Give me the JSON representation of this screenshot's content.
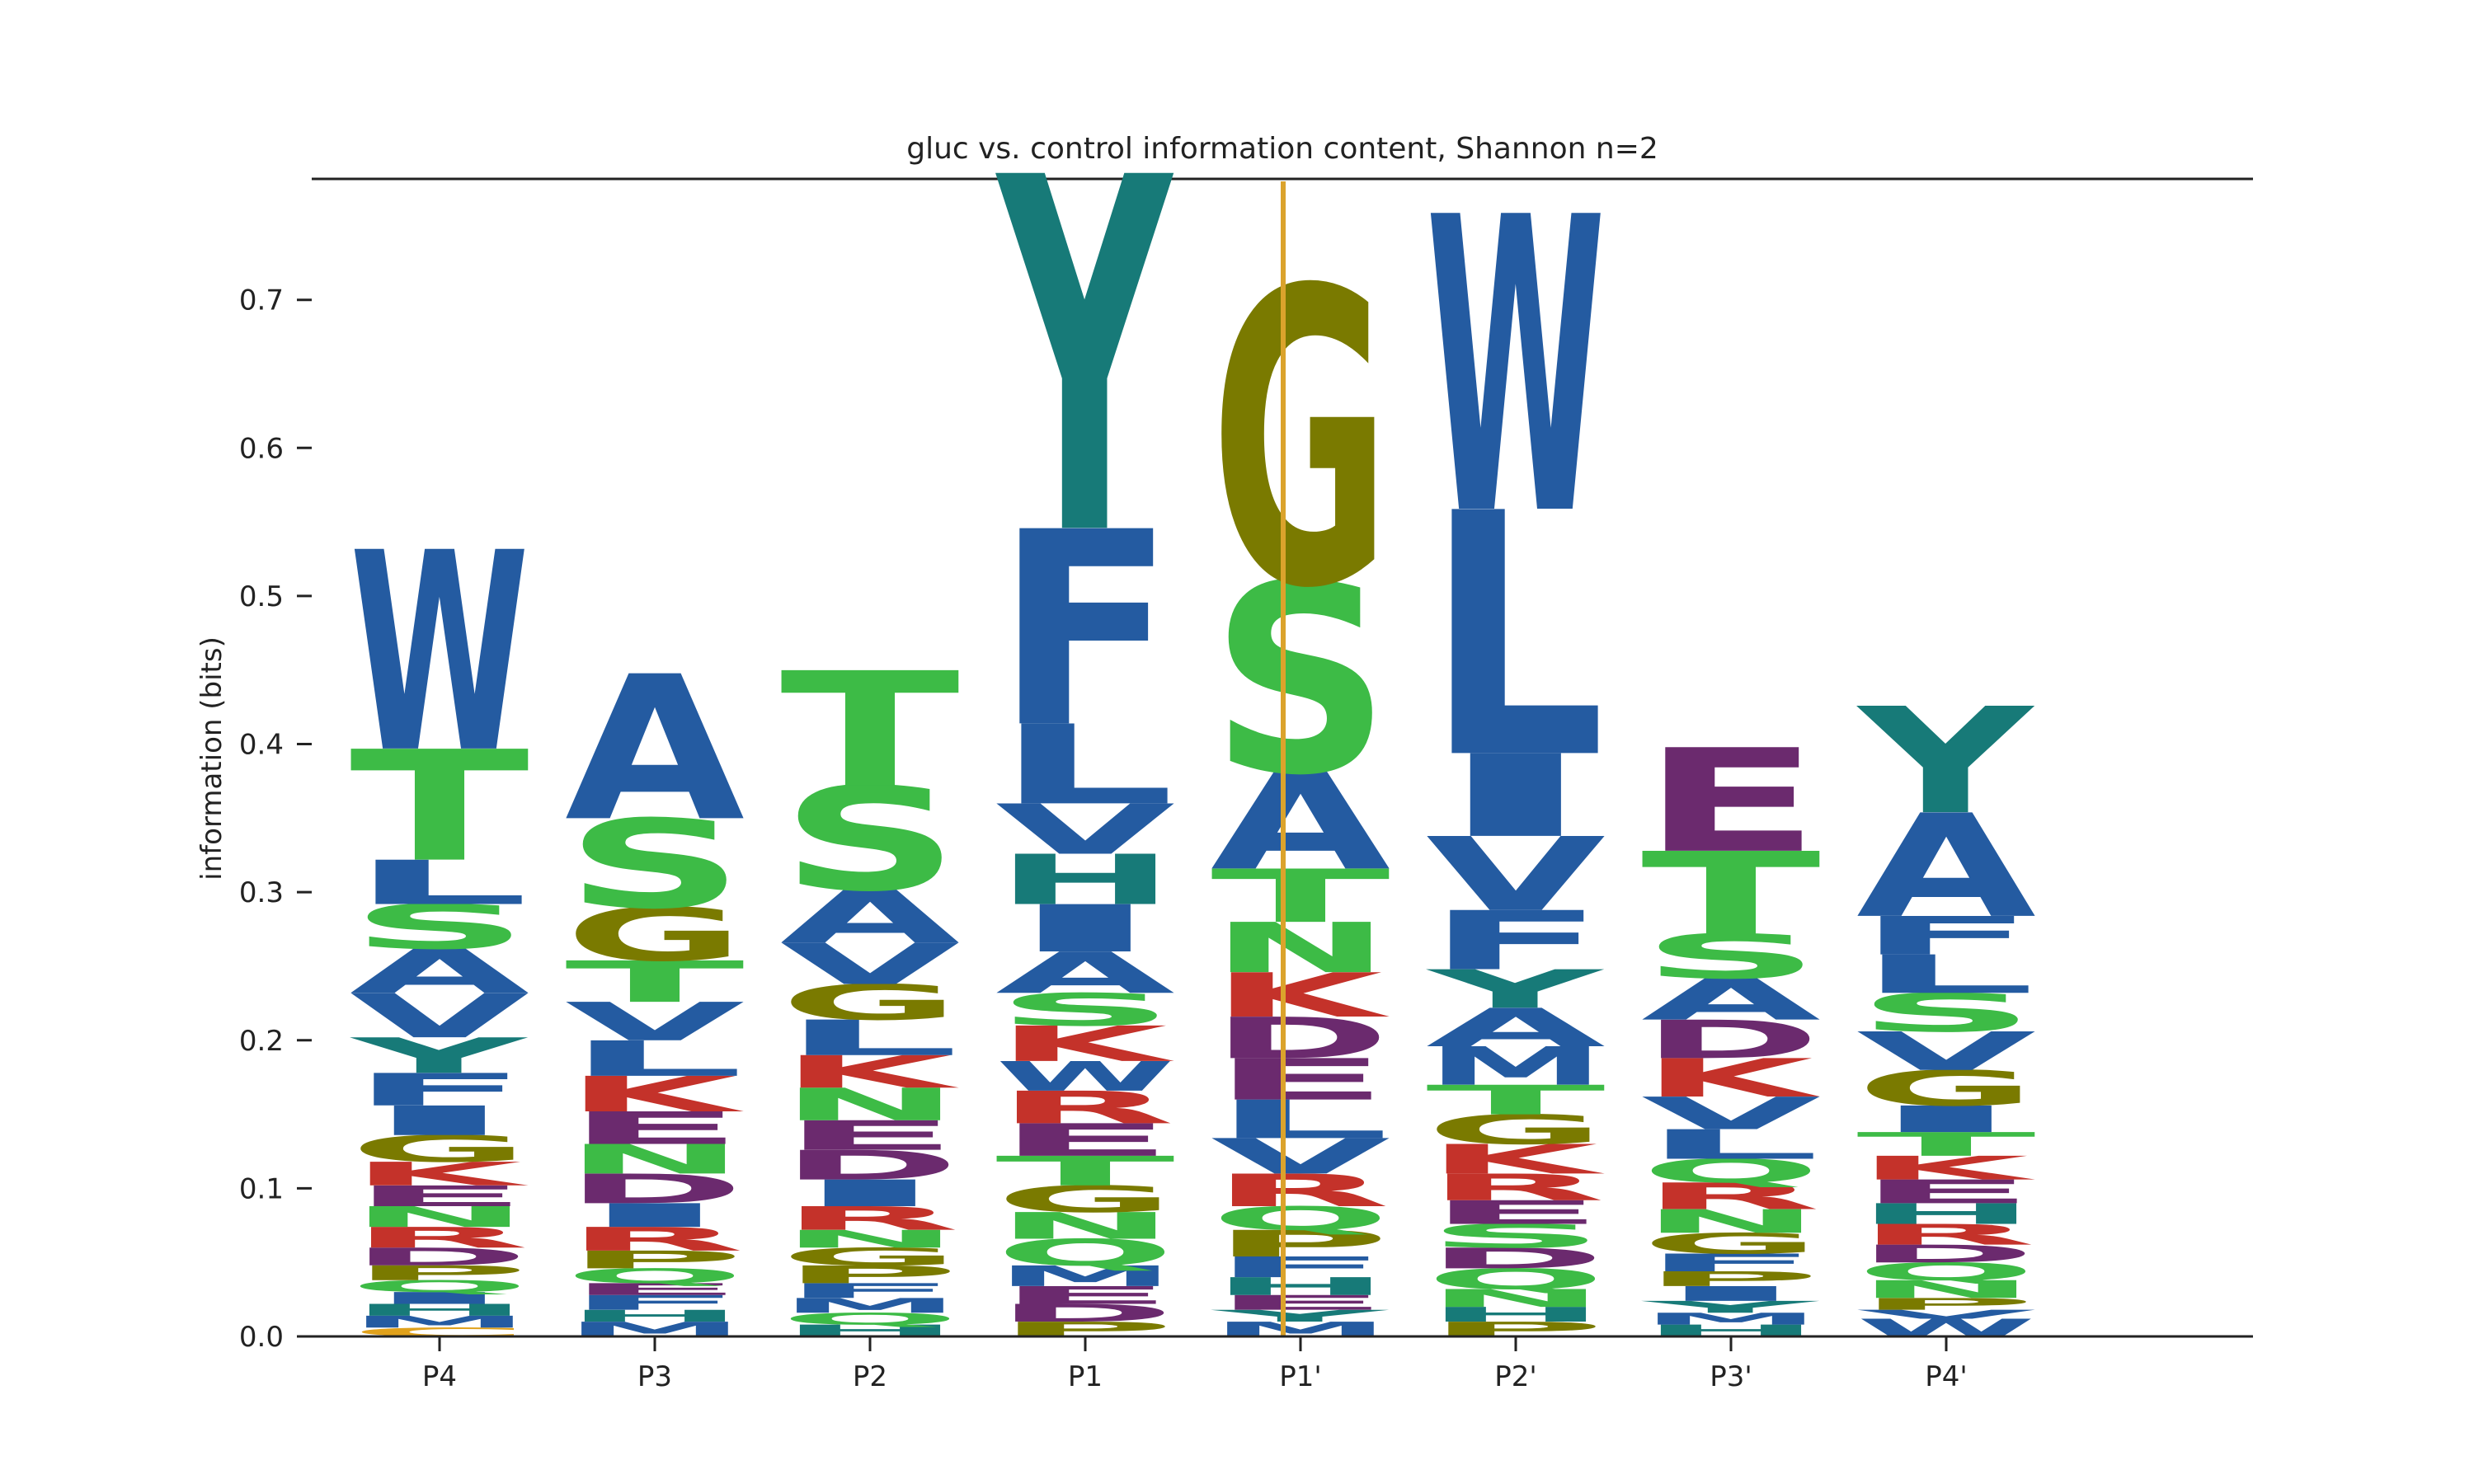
{
  "chart_data": {
    "type": "sequence-logo",
    "title": "gluc vs. control information content, Shannon n=2",
    "ylabel": "information (bits)",
    "ylim": [
      0,
      0.78
    ],
    "yticks": [
      "0.0",
      "0.1",
      "0.2",
      "0.3",
      "0.4",
      "0.5",
      "0.6",
      "0.7"
    ],
    "cleavage_site_after": "P1",
    "colors": {
      "W": "#245ba1",
      "L": "#245ba1",
      "A": "#245ba1",
      "V": "#245ba1",
      "F": "#245ba1",
      "I": "#245ba1",
      "M": "#245ba1",
      "Y": "#177a78",
      "H": "#177a78",
      "T": "#3dbb46",
      "S": "#3dbb46",
      "N": "#3dbb46",
      "Q": "#3dbb46",
      "G": "#7a7a00",
      "P": "#7a7a00",
      "K": "#c4322a",
      "R": "#c4322a",
      "E": "#6b2a6e",
      "D": "#6b2a6e",
      "C": "#e0a11b",
      "cleavage_line": "#dba32c"
    },
    "positions": [
      {
        "label": "P4",
        "letters": [
          {
            "aa": "C",
            "bits": 0.006
          },
          {
            "aa": "M",
            "bits": 0.008
          },
          {
            "aa": "H",
            "bits": 0.008
          },
          {
            "aa": "I",
            "bits": 0.008
          },
          {
            "aa": "Q",
            "bits": 0.008
          },
          {
            "aa": "P",
            "bits": 0.01
          },
          {
            "aa": "D",
            "bits": 0.012
          },
          {
            "aa": "R",
            "bits": 0.014
          },
          {
            "aa": "N",
            "bits": 0.014
          },
          {
            "aa": "E",
            "bits": 0.014
          },
          {
            "aa": "K",
            "bits": 0.016
          },
          {
            "aa": "G",
            "bits": 0.018
          },
          {
            "aa": "I",
            "bits": 0.02
          },
          {
            "aa": "F",
            "bits": 0.022
          },
          {
            "aa": "Y",
            "bits": 0.024
          },
          {
            "aa": "V",
            "bits": 0.03
          },
          {
            "aa": "A",
            "bits": 0.03
          },
          {
            "aa": "S",
            "bits": 0.03
          },
          {
            "aa": "L",
            "bits": 0.03
          },
          {
            "aa": "T",
            "bits": 0.075
          },
          {
            "aa": "W",
            "bits": 0.135
          }
        ]
      },
      {
        "label": "P3",
        "letters": [
          {
            "aa": "M",
            "bits": 0.01
          },
          {
            "aa": "H",
            "bits": 0.008
          },
          {
            "aa": "F",
            "bits": 0.01
          },
          {
            "aa": "E",
            "bits": 0.008
          },
          {
            "aa": "Q",
            "bits": 0.01
          },
          {
            "aa": "P",
            "bits": 0.012
          },
          {
            "aa": "R",
            "bits": 0.016
          },
          {
            "aa": "I",
            "bits": 0.016
          },
          {
            "aa": "D",
            "bits": 0.02
          },
          {
            "aa": "N",
            "bits": 0.02
          },
          {
            "aa": "E",
            "bits": 0.022
          },
          {
            "aa": "K",
            "bits": 0.024
          },
          {
            "aa": "L",
            "bits": 0.024
          },
          {
            "aa": "V",
            "bits": 0.026
          },
          {
            "aa": "T",
            "bits": 0.028
          },
          {
            "aa": "G",
            "bits": 0.036
          },
          {
            "aa": "S",
            "bits": 0.06
          },
          {
            "aa": "A",
            "bits": 0.098
          }
        ]
      },
      {
        "label": "P2",
        "letters": [
          {
            "aa": "H",
            "bits": 0.008
          },
          {
            "aa": "Q",
            "bits": 0.008
          },
          {
            "aa": "M",
            "bits": 0.01
          },
          {
            "aa": "F",
            "bits": 0.01
          },
          {
            "aa": "P",
            "bits": 0.012
          },
          {
            "aa": "G",
            "bits": 0.012
          },
          {
            "aa": "N",
            "bits": 0.012
          },
          {
            "aa": "R",
            "bits": 0.016
          },
          {
            "aa": "I",
            "bits": 0.018
          },
          {
            "aa": "D",
            "bits": 0.02
          },
          {
            "aa": "E",
            "bits": 0.02
          },
          {
            "aa": "N",
            "bits": 0.022
          },
          {
            "aa": "K",
            "bits": 0.022
          },
          {
            "aa": "L",
            "bits": 0.024
          },
          {
            "aa": "G",
            "bits": 0.024
          },
          {
            "aa": "V",
            "bits": 0.028
          },
          {
            "aa": "A",
            "bits": 0.036
          },
          {
            "aa": "S",
            "bits": 0.07
          },
          {
            "aa": "T",
            "bits": 0.078
          }
        ]
      },
      {
        "label": "P1",
        "letters": [
          {
            "aa": "P",
            "bits": 0.01
          },
          {
            "aa": "D",
            "bits": 0.012
          },
          {
            "aa": "E",
            "bits": 0.012
          },
          {
            "aa": "M",
            "bits": 0.014
          },
          {
            "aa": "Q",
            "bits": 0.018
          },
          {
            "aa": "N",
            "bits": 0.018
          },
          {
            "aa": "G",
            "bits": 0.018
          },
          {
            "aa": "T",
            "bits": 0.02
          },
          {
            "aa": "E",
            "bits": 0.022
          },
          {
            "aa": "R",
            "bits": 0.022
          },
          {
            "aa": "W",
            "bits": 0.02
          },
          {
            "aa": "K",
            "bits": 0.024
          },
          {
            "aa": "S",
            "bits": 0.022
          },
          {
            "aa": "A",
            "bits": 0.028
          },
          {
            "aa": "I",
            "bits": 0.032
          },
          {
            "aa": "H",
            "bits": 0.034
          },
          {
            "aa": "V",
            "bits": 0.034
          },
          {
            "aa": "L",
            "bits": 0.054
          },
          {
            "aa": "F",
            "bits": 0.132
          },
          {
            "aa": "Y",
            "bits": 0.24
          }
        ]
      },
      {
        "label": "P1'",
        "letters": [
          {
            "aa": "M",
            "bits": 0.01
          },
          {
            "aa": "Y",
            "bits": 0.008
          },
          {
            "aa": "E",
            "bits": 0.01
          },
          {
            "aa": "H",
            "bits": 0.012
          },
          {
            "aa": "F",
            "bits": 0.014
          },
          {
            "aa": "P",
            "bits": 0.018
          },
          {
            "aa": "Q",
            "bits": 0.016
          },
          {
            "aa": "R",
            "bits": 0.022
          },
          {
            "aa": "V",
            "bits": 0.024
          },
          {
            "aa": "L",
            "bits": 0.026
          },
          {
            "aa": "E",
            "bits": 0.028
          },
          {
            "aa": "D",
            "bits": 0.028
          },
          {
            "aa": "K",
            "bits": 0.03
          },
          {
            "aa": "N",
            "bits": 0.034
          },
          {
            "aa": "T",
            "bits": 0.036
          },
          {
            "aa": "A",
            "bits": 0.066
          },
          {
            "aa": "S",
            "bits": 0.128
          },
          {
            "aa": "G",
            "bits": 0.2
          }
        ]
      },
      {
        "label": "P2'",
        "letters": [
          {
            "aa": "P",
            "bits": 0.01
          },
          {
            "aa": "H",
            "bits": 0.01
          },
          {
            "aa": "N",
            "bits": 0.012
          },
          {
            "aa": "Q",
            "bits": 0.014
          },
          {
            "aa": "D",
            "bits": 0.014
          },
          {
            "aa": "S",
            "bits": 0.016
          },
          {
            "aa": "E",
            "bits": 0.016
          },
          {
            "aa": "R",
            "bits": 0.018
          },
          {
            "aa": "K",
            "bits": 0.02
          },
          {
            "aa": "G",
            "bits": 0.02
          },
          {
            "aa": "T",
            "bits": 0.02
          },
          {
            "aa": "M",
            "bits": 0.026
          },
          {
            "aa": "A",
            "bits": 0.026
          },
          {
            "aa": "Y",
            "bits": 0.026
          },
          {
            "aa": "F",
            "bits": 0.04
          },
          {
            "aa": "V",
            "bits": 0.05
          },
          {
            "aa": "I",
            "bits": 0.056
          },
          {
            "aa": "L",
            "bits": 0.165
          },
          {
            "aa": "W",
            "bits": 0.2
          }
        ]
      },
      {
        "label": "P3'",
        "letters": [
          {
            "aa": "H",
            "bits": 0.008
          },
          {
            "aa": "M",
            "bits": 0.008
          },
          {
            "aa": "Y",
            "bits": 0.008
          },
          {
            "aa": "I",
            "bits": 0.01
          },
          {
            "aa": "P",
            "bits": 0.01
          },
          {
            "aa": "F",
            "bits": 0.012
          },
          {
            "aa": "G",
            "bits": 0.014
          },
          {
            "aa": "N",
            "bits": 0.016
          },
          {
            "aa": "R",
            "bits": 0.018
          },
          {
            "aa": "Q",
            "bits": 0.016
          },
          {
            "aa": "L",
            "bits": 0.02
          },
          {
            "aa": "V",
            "bits": 0.022
          },
          {
            "aa": "K",
            "bits": 0.026
          },
          {
            "aa": "D",
            "bits": 0.026
          },
          {
            "aa": "A",
            "bits": 0.028
          },
          {
            "aa": "S",
            "bits": 0.03
          },
          {
            "aa": "T",
            "bits": 0.056
          },
          {
            "aa": "E",
            "bits": 0.07
          }
        ]
      },
      {
        "label": "P4'",
        "letters": [
          {
            "aa": "W",
            "bits": 0.012
          },
          {
            "aa": "V",
            "bits": 0.006
          },
          {
            "aa": "P",
            "bits": 0.008
          },
          {
            "aa": "N",
            "bits": 0.012
          },
          {
            "aa": "Q",
            "bits": 0.012
          },
          {
            "aa": "D",
            "bits": 0.012
          },
          {
            "aa": "R",
            "bits": 0.014
          },
          {
            "aa": "H",
            "bits": 0.014
          },
          {
            "aa": "E",
            "bits": 0.016
          },
          {
            "aa": "K",
            "bits": 0.016
          },
          {
            "aa": "T",
            "bits": 0.016
          },
          {
            "aa": "I",
            "bits": 0.018
          },
          {
            "aa": "G",
            "bits": 0.024
          },
          {
            "aa": "V",
            "bits": 0.026
          },
          {
            "aa": "S",
            "bits": 0.026
          },
          {
            "aa": "L",
            "bits": 0.026
          },
          {
            "aa": "F",
            "bits": 0.026
          },
          {
            "aa": "A",
            "bits": 0.07
          },
          {
            "aa": "Y",
            "bits": 0.072
          }
        ]
      }
    ]
  }
}
